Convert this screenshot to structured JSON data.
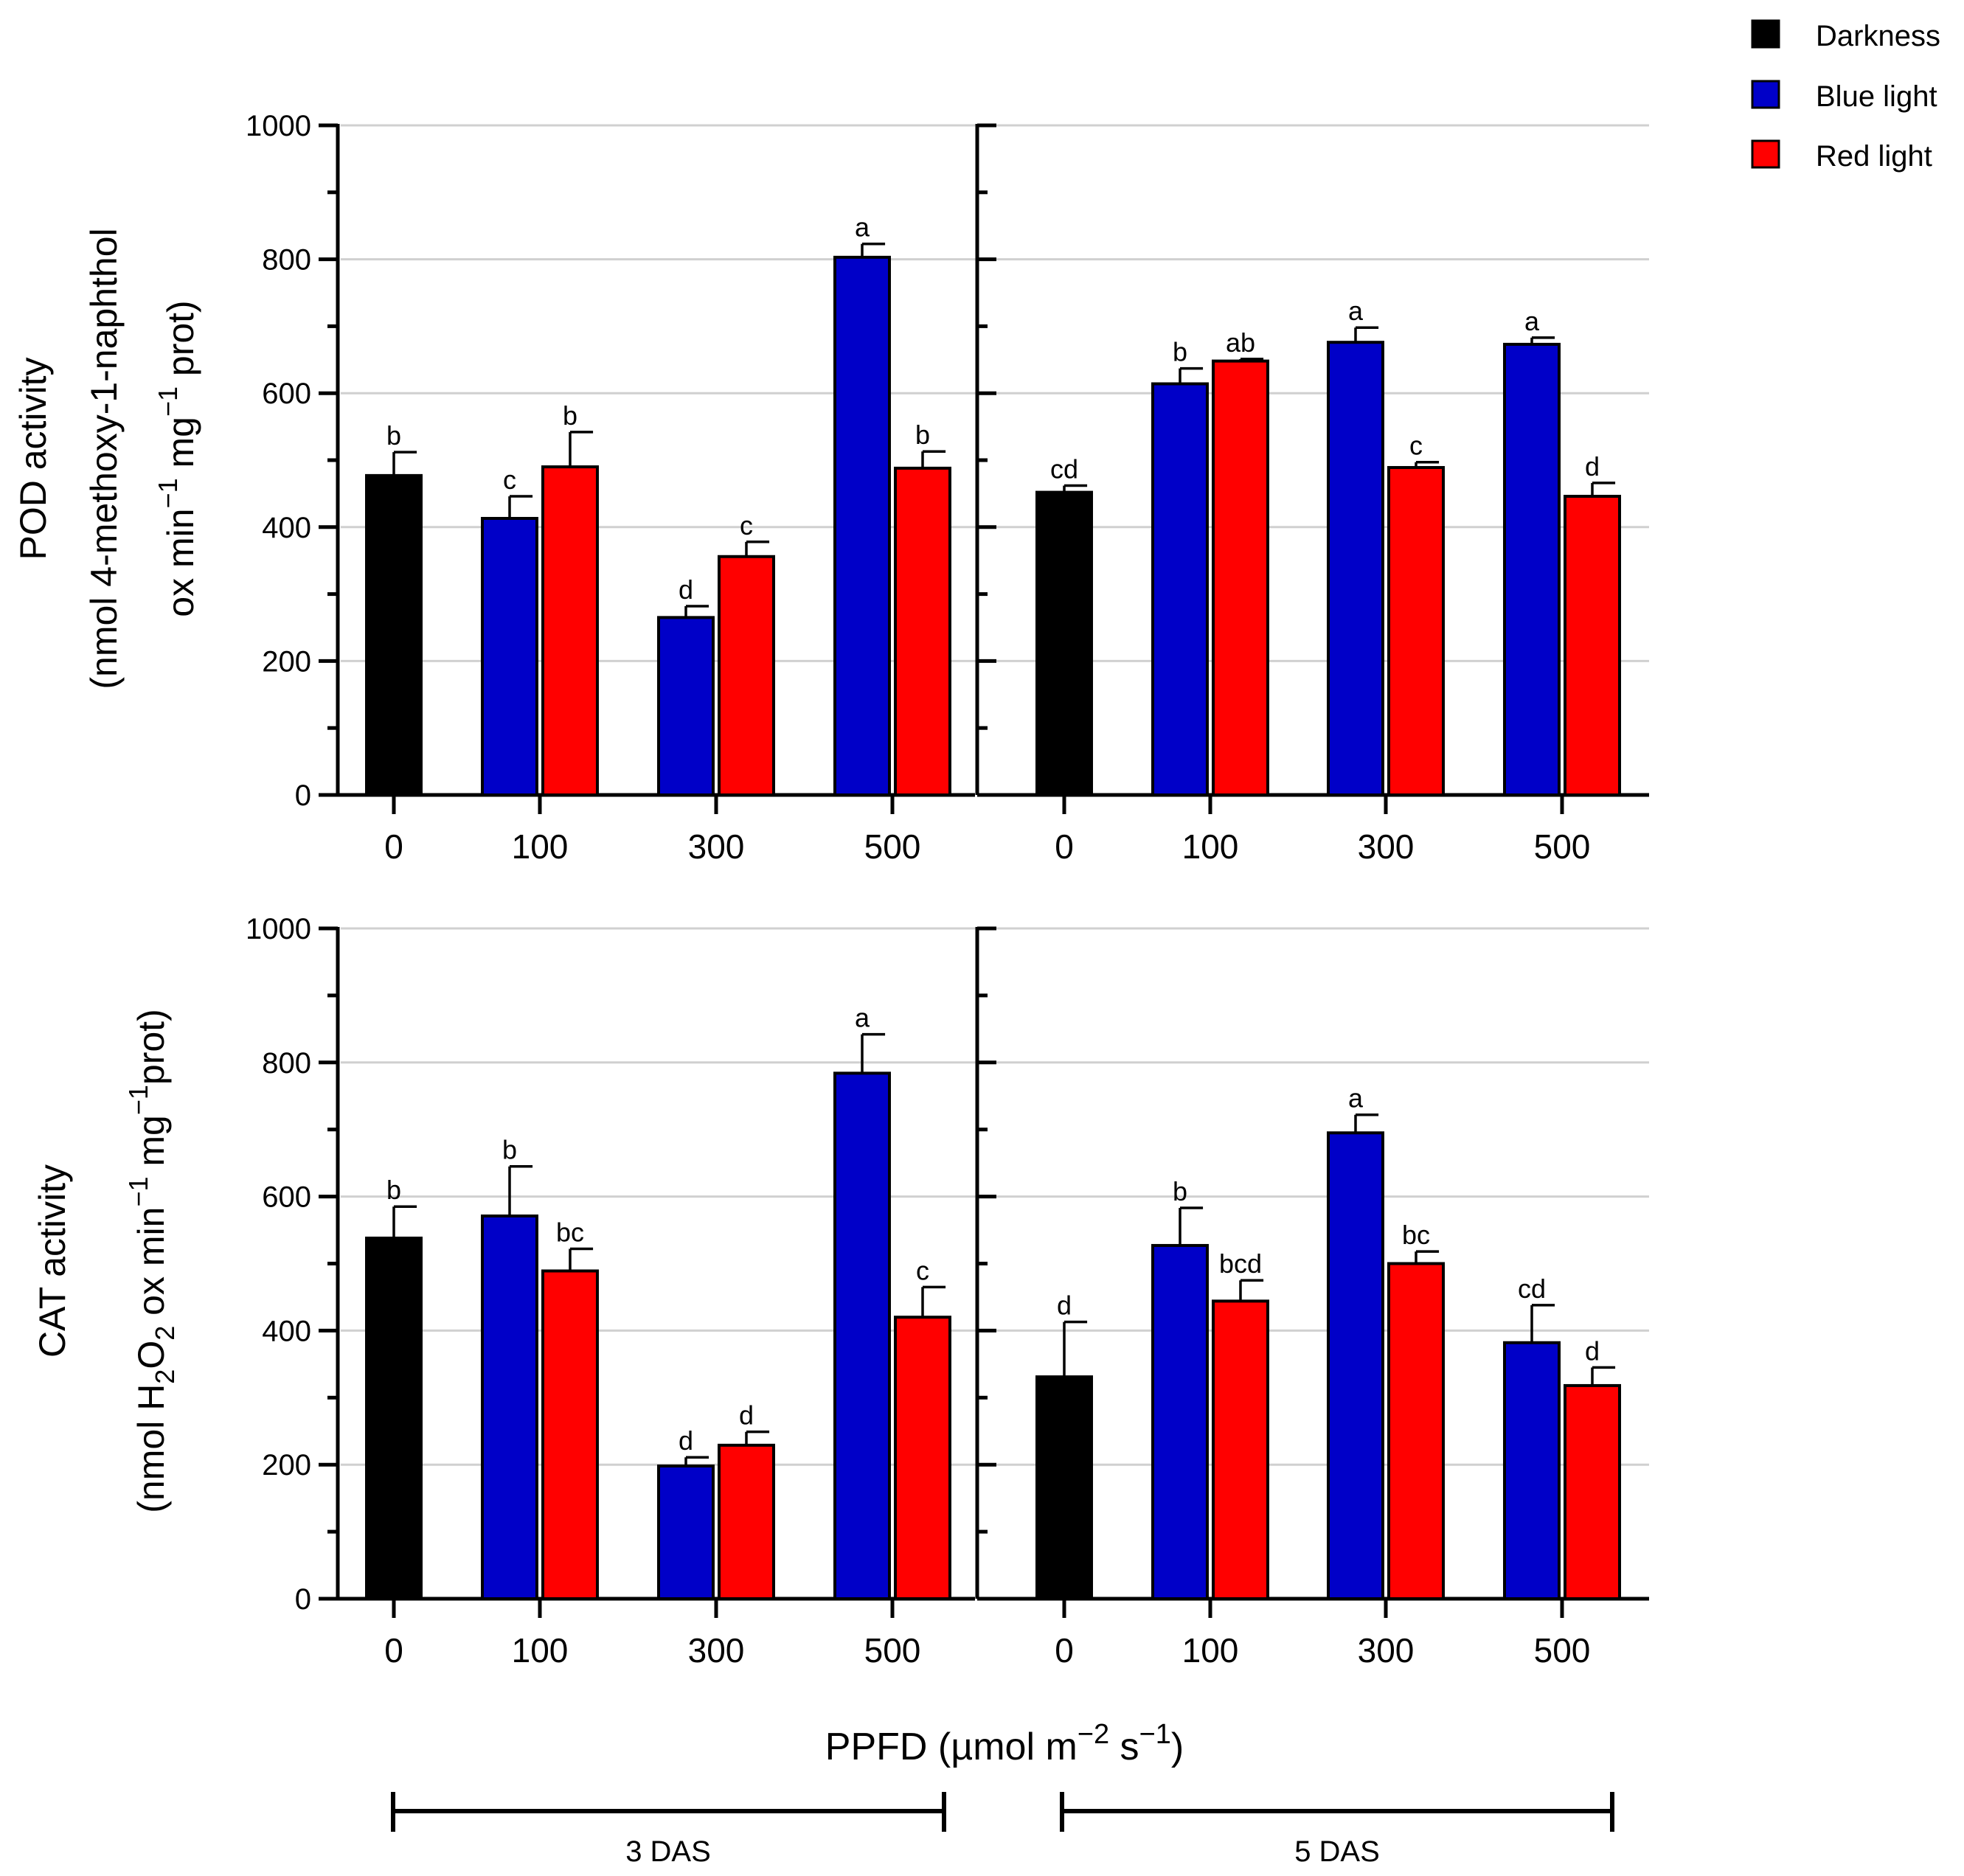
{
  "legend": [
    {
      "label": "Darkness",
      "color": "#000000"
    },
    {
      "label": "Blue light",
      "color": "#0000c8"
    },
    {
      "label": "Red light",
      "color": "#ff0000"
    }
  ],
  "x_axis_title": {
    "main": "PPFD (µmol m",
    "sup1": "−2",
    "mid": " s",
    "sup2": "−1",
    "end": ")"
  },
  "das_labels": [
    "3 DAS",
    "5 DAS"
  ],
  "chart_data": [
    {
      "type": "bar",
      "id": "pod",
      "ylabel_line1": "POD activity",
      "ylabel_line2": {
        "a": "(nmol 4-methoxy-1-naphthol"
      },
      "ylabel_line3": {
        "a": "ox min",
        "sup1": "−1",
        "b": " mg",
        "sup2": "−1",
        "c": " prot)"
      },
      "ylim": [
        0,
        1000
      ],
      "yticks": [
        0,
        200,
        400,
        600,
        800,
        1000
      ],
      "panels": [
        {
          "das": "3 DAS",
          "categories": [
            "0",
            "100",
            "300",
            "500"
          ],
          "bars": [
            {
              "category": "0",
              "series": "Darkness",
              "value": 477,
              "err": 35,
              "sig": "b"
            },
            {
              "category": "100",
              "series": "Blue light",
              "value": 413,
              "err": 33,
              "sig": "c"
            },
            {
              "category": "100",
              "series": "Red light",
              "value": 490,
              "err": 52,
              "sig": "b"
            },
            {
              "category": "300",
              "series": "Blue light",
              "value": 265,
              "err": 17,
              "sig": "d"
            },
            {
              "category": "300",
              "series": "Red light",
              "value": 356,
              "err": 22,
              "sig": "c"
            },
            {
              "category": "500",
              "series": "Blue light",
              "value": 803,
              "err": 20,
              "sig": "a"
            },
            {
              "category": "500",
              "series": "Red light",
              "value": 488,
              "err": 25,
              "sig": "b"
            }
          ]
        },
        {
          "das": "5 DAS",
          "categories": [
            "0",
            "100",
            "300",
            "500"
          ],
          "bars": [
            {
              "category": "0",
              "series": "Darkness",
              "value": 452,
              "err": 10,
              "sig": "cd"
            },
            {
              "category": "100",
              "series": "Blue light",
              "value": 614,
              "err": 23,
              "sig": "b"
            },
            {
              "category": "100",
              "series": "Red light",
              "value": 648,
              "err": 3,
              "sig": "ab"
            },
            {
              "category": "300",
              "series": "Blue light",
              "value": 676,
              "err": 22,
              "sig": "a"
            },
            {
              "category": "300",
              "series": "Red light",
              "value": 489,
              "err": 8,
              "sig": "c"
            },
            {
              "category": "500",
              "series": "Blue light",
              "value": 673,
              "err": 10,
              "sig": "a"
            },
            {
              "category": "500",
              "series": "Red light",
              "value": 446,
              "err": 20,
              "sig": "d"
            }
          ]
        }
      ]
    },
    {
      "type": "bar",
      "id": "cat",
      "ylabel_line1": "CAT activity",
      "ylabel_line2": {
        "a": "(nmol H",
        "sub1": "2",
        "b": "O",
        "sub2": "2",
        "c": " ox min",
        "sup1": "−1",
        "d": " mg",
        "sup2": "−1",
        "e": "prot)"
      },
      "ylim": [
        0,
        1000
      ],
      "yticks": [
        0,
        200,
        400,
        600,
        800,
        1000
      ],
      "panels": [
        {
          "das": "3 DAS",
          "categories": [
            "0",
            "100",
            "300",
            "500"
          ],
          "bars": [
            {
              "category": "0",
              "series": "Darkness",
              "value": 538,
              "err": 47,
              "sig": "b"
            },
            {
              "category": "100",
              "series": "Blue light",
              "value": 571,
              "err": 74,
              "sig": "b"
            },
            {
              "category": "100",
              "series": "Red light",
              "value": 489,
              "err": 33,
              "sig": "bc"
            },
            {
              "category": "300",
              "series": "Blue light",
              "value": 198,
              "err": 13,
              "sig": "d"
            },
            {
              "category": "300",
              "series": "Red light",
              "value": 229,
              "err": 20,
              "sig": "d"
            },
            {
              "category": "500",
              "series": "Blue light",
              "value": 784,
              "err": 58,
              "sig": "a"
            },
            {
              "category": "500",
              "series": "Red light",
              "value": 420,
              "err": 45,
              "sig": "c"
            }
          ]
        },
        {
          "das": "5 DAS",
          "categories": [
            "0",
            "100",
            "300",
            "500"
          ],
          "bars": [
            {
              "category": "0",
              "series": "Darkness",
              "value": 331,
              "err": 82,
              "sig": "d"
            },
            {
              "category": "100",
              "series": "Blue light",
              "value": 527,
              "err": 56,
              "sig": "b"
            },
            {
              "category": "100",
              "series": "Red light",
              "value": 444,
              "err": 31,
              "sig": "bcd"
            },
            {
              "category": "300",
              "series": "Blue light",
              "value": 695,
              "err": 27,
              "sig": "a"
            },
            {
              "category": "300",
              "series": "Red light",
              "value": 500,
              "err": 18,
              "sig": "bc"
            },
            {
              "category": "500",
              "series": "Blue light",
              "value": 382,
              "err": 56,
              "sig": "cd"
            },
            {
              "category": "500",
              "series": "Red light",
              "value": 318,
              "err": 27,
              "sig": "d"
            }
          ]
        }
      ]
    }
  ]
}
